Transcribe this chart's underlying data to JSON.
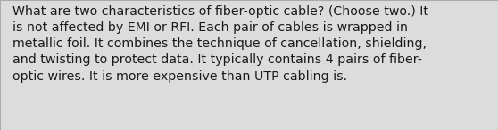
{
  "text": "What are two characteristics of fiber-optic cable? (Choose two.) It\nis not affected by EMI or RFI. Each pair of cables is wrapped in\nmetallic foil. It combines the technique of cancellation, shielding,\nand twisting to protect data. It typically contains 4 pairs of fiber-\noptic wires. It is more expensive than UTP cabling is.",
  "background_color": "#dcdcdc",
  "border_color": "#aaaaaa",
  "text_color": "#1a1a1a",
  "font_size": 10.2,
  "fig_width": 5.58,
  "fig_height": 1.46,
  "dpi": 100
}
